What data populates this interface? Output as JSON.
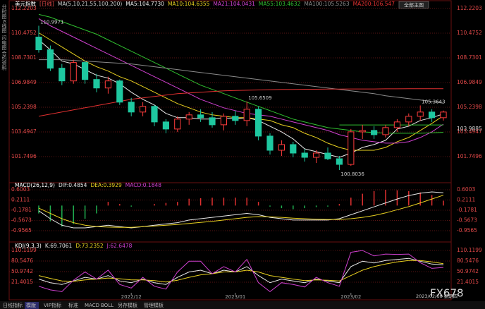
{
  "chart_data": [
    {
      "type": "candlestick",
      "title": "美元指数",
      "subtitle": "[日线]",
      "indicator": "MA(5,10,21,55,100,200)",
      "categories": [
        null,
        null,
        null,
        null,
        null,
        null,
        null,
        null,
        "2022/12",
        null,
        null,
        null,
        null,
        null,
        null,
        null,
        null,
        "2023/01",
        null,
        null,
        null,
        null,
        null,
        null,
        null,
        null,
        null,
        "2023/02",
        null,
        null,
        null,
        null,
        null,
        null,
        null,
        null
      ],
      "open": [
        110.2,
        109.3,
        108.0,
        107.1,
        108.4,
        107.2,
        106.6,
        107.1,
        105.6,
        104.9,
        105.3,
        104.2,
        103.7,
        104.4,
        104.7,
        104.5,
        104.0,
        104.6,
        104.3,
        105.1,
        103.2,
        102.2,
        102.6,
        102.0,
        101.7,
        102.0,
        101.6,
        101.2,
        103.5,
        103.6,
        103.3,
        103.8,
        104.2,
        104.6,
        104.9,
        104.5
      ],
      "high": [
        110.9971,
        109.6,
        108.3,
        108.6,
        108.5,
        107.6,
        107.4,
        107.2,
        105.9,
        105.6,
        105.4,
        104.4,
        104.6,
        104.9,
        105.1,
        104.9,
        104.8,
        105.0,
        105.6509,
        105.3,
        103.4,
        102.9,
        102.8,
        102.3,
        102.2,
        102.4,
        101.8,
        103.7,
        104.0,
        103.9,
        104.0,
        104.4,
        104.8,
        105.3643,
        105.1,
        105.0
      ],
      "low": [
        109.1,
        107.8,
        106.8,
        106.9,
        106.9,
        106.3,
        106.2,
        105.4,
        104.6,
        104.6,
        103.9,
        103.4,
        103.5,
        104.0,
        104.2,
        103.8,
        103.6,
        104.0,
        103.9,
        102.9,
        101.9,
        101.8,
        101.7,
        101.4,
        101.3,
        101.5,
        100.8036,
        101.1,
        103.0,
        103.0,
        103.1,
        103.5,
        103.9,
        104.3,
        104.2,
        104.3
      ],
      "close": [
        109.3,
        108.0,
        107.1,
        108.4,
        107.2,
        106.6,
        107.1,
        105.6,
        104.9,
        105.3,
        104.2,
        103.7,
        104.4,
        104.7,
        104.5,
        104.0,
        104.6,
        104.3,
        105.1,
        103.2,
        102.2,
        102.6,
        102.0,
        101.7,
        102.0,
        101.6,
        101.2,
        103.5,
        103.6,
        103.3,
        103.8,
        104.2,
        104.6,
        104.9,
        104.5,
        104.9
      ],
      "up_color": "#ff3c3c",
      "down_color": "#1ec8a0",
      "series": [
        {
          "name": "MA5:104.7730",
          "color": "#e8e8e8",
          "values": [
            110.0,
            109.3,
            108.5,
            108.3,
            107.9,
            107.5,
            107.3,
            106.9,
            106.3,
            105.8,
            105.4,
            104.8,
            104.5,
            104.5,
            104.4,
            104.4,
            104.5,
            104.4,
            104.5,
            104.3,
            103.9,
            103.5,
            103.0,
            102.3,
            102.1,
            101.9,
            101.7,
            102.0,
            102.4,
            102.6,
            102.9,
            103.7,
            103.9,
            104.3,
            104.5,
            104.773
          ]
        },
        {
          "name": "MA10:104.6355",
          "color": "#e8d020",
          "values": [
            110.5,
            110.0,
            109.5,
            109.0,
            108.5,
            108.1,
            107.8,
            107.4,
            107.1,
            106.7,
            106.3,
            105.9,
            105.5,
            105.2,
            104.9,
            104.7,
            104.6,
            104.5,
            104.5,
            104.4,
            104.3,
            104.0,
            103.8,
            103.4,
            103.1,
            102.7,
            102.4,
            102.2,
            102.2,
            102.2,
            102.4,
            102.8,
            103.1,
            103.6,
            104.1,
            104.6355
          ]
        },
        {
          "name": "MA21:104.0431",
          "color": "#d040d0",
          "values": [
            111.5,
            111.0,
            110.6,
            110.2,
            109.8,
            109.4,
            109.0,
            108.6,
            108.2,
            107.8,
            107.4,
            107.0,
            106.6,
            106.2,
            105.8,
            105.5,
            105.2,
            105.0,
            104.8,
            104.7,
            104.6,
            104.4,
            104.2,
            104.0,
            103.8,
            103.6,
            103.3,
            103.1,
            102.9,
            102.8,
            102.7,
            102.7,
            102.8,
            103.1,
            103.5,
            104.0431
          ]
        },
        {
          "name": "MA55:103.4632",
          "color": "#30c030",
          "values": [
            111.8,
            111.6,
            111.3,
            111.0,
            110.7,
            110.4,
            110.0,
            109.6,
            109.2,
            108.8,
            108.4,
            108.0,
            107.6,
            107.2,
            106.8,
            106.5,
            106.2,
            105.9,
            105.6,
            105.3,
            105.0,
            104.7,
            104.4,
            104.2,
            104.0,
            103.8,
            103.7,
            103.6,
            103.5,
            103.45,
            103.4,
            103.4,
            103.4,
            103.4,
            103.43,
            103.4632
          ]
        },
        {
          "name": "MA100:105.5263",
          "color": "#8a8a8a",
          "values": [
            108.6,
            108.6,
            108.6,
            108.55,
            108.5,
            108.45,
            108.4,
            108.35,
            108.3,
            108.2,
            108.1,
            108.0,
            107.9,
            107.8,
            107.7,
            107.6,
            107.5,
            107.4,
            107.3,
            107.2,
            107.1,
            107.0,
            106.9,
            106.8,
            106.7,
            106.6,
            106.5,
            106.4,
            106.3,
            106.2,
            106.05,
            105.95,
            105.85,
            105.75,
            105.65,
            105.5263
          ]
        },
        {
          "name": "MA200:106.547",
          "color": "#e03030",
          "values": [
            104.6,
            104.75,
            104.9,
            105.05,
            105.2,
            105.35,
            105.5,
            105.65,
            105.8,
            105.9,
            106.0,
            106.1,
            106.2,
            106.25,
            106.3,
            106.35,
            106.4,
            106.42,
            106.44,
            106.46,
            106.48,
            106.5,
            106.5,
            106.51,
            106.51,
            106.52,
            106.52,
            106.53,
            106.53,
            106.53,
            106.54,
            106.54,
            106.545,
            106.545,
            106.546,
            106.547
          ]
        }
      ],
      "ref_line": 103.9885,
      "ylim": [
        100.0045,
        112.2203
      ],
      "yticks": [
        112.2203,
        110.4752,
        108.7301,
        106.9849,
        105.2398,
        103.4947,
        101.7496
      ],
      "grid": true
    },
    {
      "type": "macd",
      "title": "MACD(26,12,9)",
      "series": [
        {
          "name": "DIF:0.4854",
          "color": "#e8e8e8",
          "values": [
            -0.2,
            -0.5,
            -0.75,
            -0.85,
            -0.85,
            -0.8,
            -0.75,
            -0.8,
            -0.85,
            -0.8,
            -0.75,
            -0.7,
            -0.65,
            -0.55,
            -0.5,
            -0.45,
            -0.4,
            -0.35,
            -0.3,
            -0.35,
            -0.45,
            -0.5,
            -0.55,
            -0.55,
            -0.55,
            -0.55,
            -0.5,
            -0.35,
            -0.2,
            -0.05,
            0.1,
            0.25,
            0.38,
            0.47,
            0.52,
            0.4854
          ]
        },
        {
          "name": "DEA:0.3929",
          "color": "#e8d020",
          "values": [
            -0.1,
            -0.3,
            -0.5,
            -0.65,
            -0.75,
            -0.8,
            -0.82,
            -0.83,
            -0.83,
            -0.8,
            -0.78,
            -0.75,
            -0.72,
            -0.68,
            -0.64,
            -0.6,
            -0.55,
            -0.5,
            -0.45,
            -0.42,
            -0.43,
            -0.45,
            -0.48,
            -0.5,
            -0.52,
            -0.53,
            -0.53,
            -0.5,
            -0.45,
            -0.38,
            -0.28,
            -0.16,
            -0.04,
            0.1,
            0.25,
            0.3929
          ]
        },
        {
          "name": "MACD:0.1848",
          "color": "#d040d0",
          "bars": true,
          "values": [
            -0.3,
            -0.6,
            -0.8,
            -0.7,
            -0.5,
            -0.3,
            0.14,
            0.06,
            -0.04,
            0.0,
            0.06,
            0.1,
            0.14,
            0.26,
            0.28,
            0.3,
            0.3,
            0.3,
            0.3,
            0.14,
            -0.04,
            -0.1,
            -0.14,
            -0.1,
            -0.06,
            -0.04,
            0.06,
            0.3,
            0.45,
            0.55,
            0.6,
            0.58,
            0.55,
            0.5,
            0.4,
            0.1848
          ]
        }
      ],
      "up_color": "#e03030",
      "down_color": "#20b050",
      "ylim": [
        -0.9565,
        0.6003
      ],
      "yticks": [
        0.6003,
        0.2111,
        -0.1781,
        -0.5673,
        -0.9565
      ],
      "grid": true
    },
    {
      "type": "kdj",
      "title": "KDJ(9,3,3)",
      "series": [
        {
          "name": "K:69.7061",
          "color": "#e8e8e8",
          "values": [
            30,
            20,
            15,
            25,
            35,
            30,
            40,
            25,
            20,
            30,
            20,
            15,
            35,
            50,
            55,
            45,
            55,
            50,
            65,
            40,
            20,
            30,
            25,
            20,
            30,
            25,
            20,
            65,
            80,
            75,
            82,
            85,
            88,
            80,
            72,
            69.7061
          ]
        },
        {
          "name": "D:73.2352",
          "color": "#e8d020",
          "values": [
            40,
            32,
            25,
            24,
            28,
            30,
            33,
            31,
            28,
            28,
            26,
            22,
            27,
            35,
            42,
            45,
            50,
            50,
            55,
            50,
            40,
            35,
            30,
            26,
            28,
            27,
            25,
            40,
            55,
            65,
            72,
            78,
            82,
            82,
            78,
            73.2352
          ]
        },
        {
          "name": "J:62.6478",
          "color": "#d040d0",
          "values": [
            10,
            0,
            -5,
            27,
            50,
            30,
            55,
            15,
            5,
            35,
            10,
            2,
            50,
            80,
            80,
            45,
            65,
            50,
            85,
            20,
            -5,
            20,
            15,
            8,
            35,
            20,
            10,
            105,
            110,
            95,
            100,
            99,
            100,
            76,
            60,
            62.6478
          ]
        }
      ],
      "ylim": [
        -8.1712,
        110.1199
      ],
      "yticks": [
        110.1199,
        80.5476,
        50.9742,
        21.4015
      ],
      "grid": true
    }
  ],
  "ui": {
    "sidebar": [
      "分时图",
      "K线图",
      "闪电图",
      "合约资料"
    ],
    "main_button": "全部主图",
    "cursor_date": "2023/02/16 星期四",
    "watermark": "FX678",
    "tabs": [
      "日线",
      "指标",
      "模版",
      "VIP指标",
      "标准",
      "MACD",
      "BOLL",
      "另存模板",
      "管理模板"
    ]
  }
}
